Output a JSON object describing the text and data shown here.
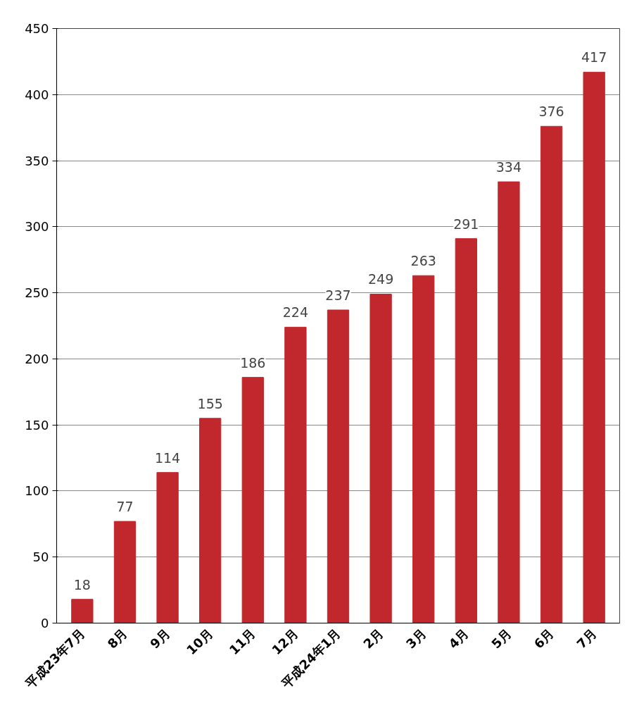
{
  "chart_data": {
    "type": "bar",
    "categories": [
      "平成23年7月",
      "8月",
      "9月",
      "10月",
      "11月",
      "12月",
      "平成24年1月",
      "2月",
      "3月",
      "4月",
      "5月",
      "6月",
      "7月"
    ],
    "values": [
      18,
      77,
      114,
      155,
      186,
      224,
      237,
      249,
      263,
      291,
      334,
      376,
      417
    ],
    "color": "#c0282d",
    "ylim": [
      0,
      450
    ],
    "yticks": [
      0,
      50,
      100,
      150,
      200,
      250,
      300,
      350,
      400,
      450
    ],
    "grid": "y",
    "data_labels": true
  }
}
